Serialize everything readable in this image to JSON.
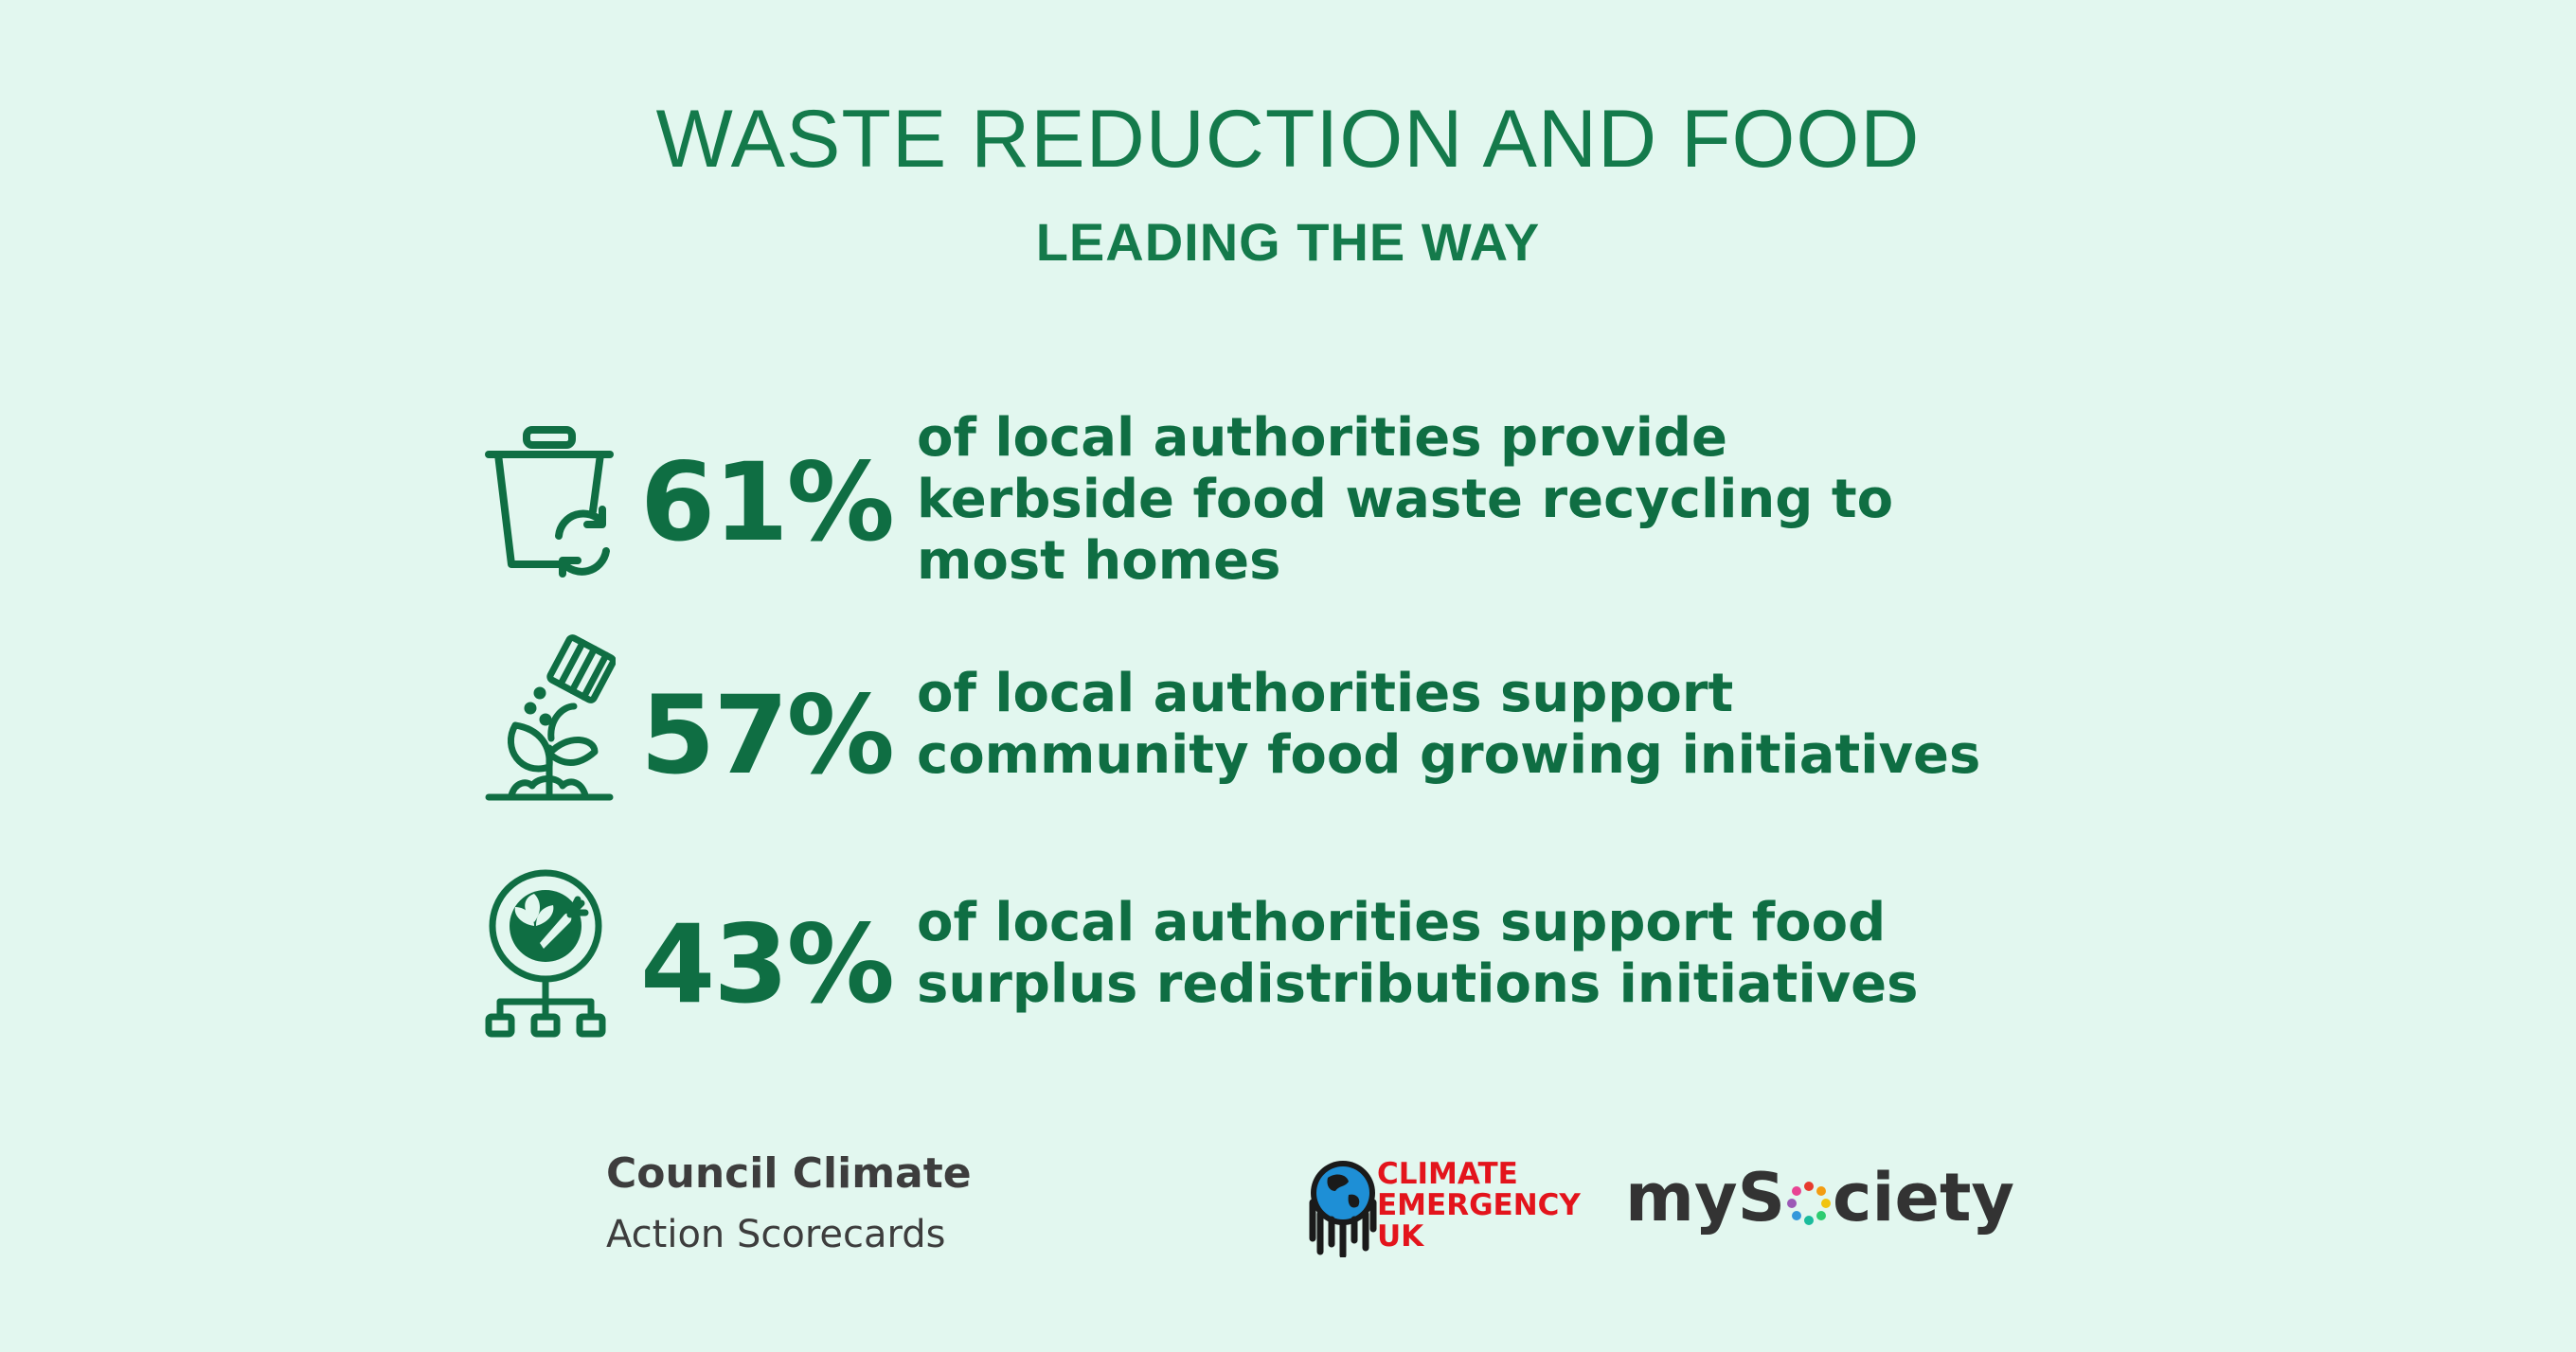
{
  "header": {
    "title": "WASTE REDUCTION AND FOOD",
    "subtitle": "LEADING THE WAY"
  },
  "stats": [
    {
      "percent": "61%",
      "lines": [
        "of local authorities provide",
        "kerbside food waste recycling to",
        "most homes"
      ],
      "icon": "food-waste-bin-recycle-icon"
    },
    {
      "percent": "57%",
      "lines": [
        "of local authorities support",
        "community food growing initiatives"
      ],
      "icon": "watering-plants-icon"
    },
    {
      "percent": "43%",
      "lines": [
        "of local authorities support food",
        "surplus redistributions initiatives"
      ],
      "icon": "food-distribution-network-icon"
    }
  ],
  "footer": {
    "brand_line1": "Council Climate",
    "brand_line2": "Action Scorecards",
    "ceuk_lines": [
      "CLIMATE",
      "EMERGENCY",
      "UK"
    ],
    "mysociety_prefix": "myS",
    "mysociety_suffix": "ciety"
  },
  "colors": {
    "background": "#e2f7ef",
    "primary_green": "#0f6e43",
    "ceuk_red": "#e3141c",
    "text_dark": "#3d3d3d"
  }
}
